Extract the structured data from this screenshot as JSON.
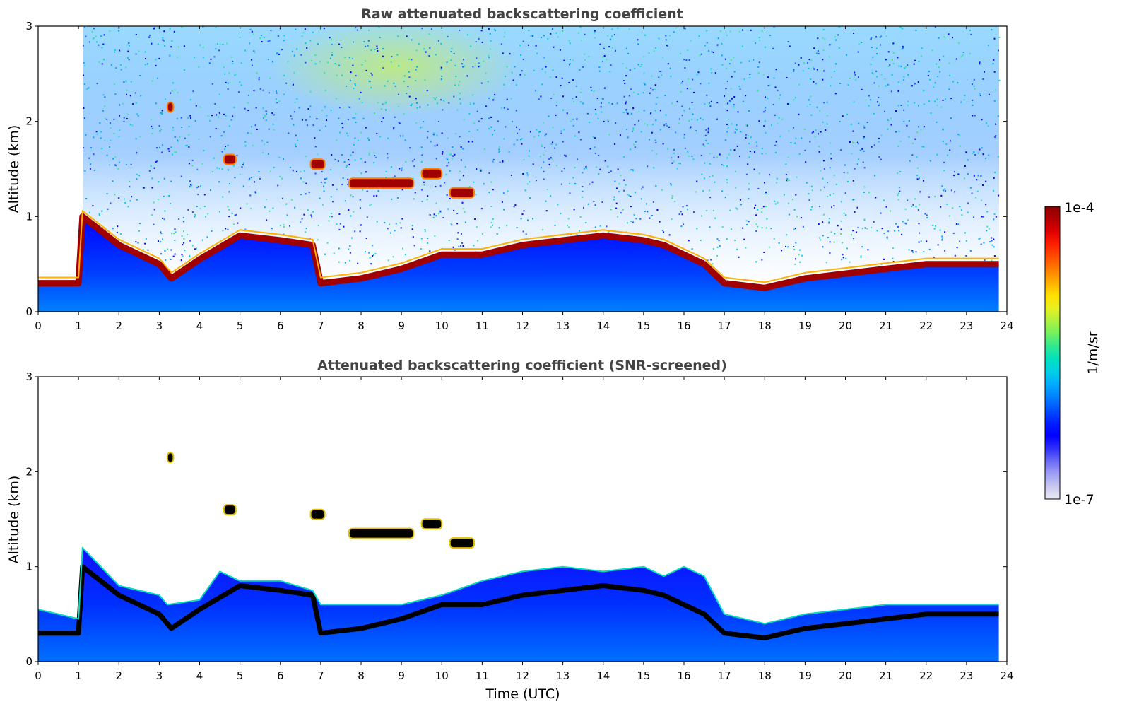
{
  "chart_data": [
    {
      "type": "heatmap",
      "title": "Raw attenuated backscattering coefficient",
      "xlabel": "",
      "ylabel": "Altitude (km)",
      "xlim": [
        0,
        24
      ],
      "ylim": [
        0,
        3
      ],
      "xticks": [
        "0",
        "1",
        "2",
        "3",
        "4",
        "5",
        "6",
        "7",
        "8",
        "9",
        "10",
        "11",
        "12",
        "13",
        "14",
        "15",
        "16",
        "17",
        "18",
        "19",
        "20",
        "21",
        "22",
        "23",
        "24"
      ],
      "yticks": [
        "0",
        "1",
        "2",
        "3"
      ],
      "data_end_time": 23.8,
      "boundary_layer_top_km": [
        [
          0,
          0.3
        ],
        [
          1,
          0.3
        ],
        [
          1.1,
          1.0
        ],
        [
          2,
          0.7
        ],
        [
          3,
          0.5
        ],
        [
          3.3,
          0.35
        ],
        [
          4,
          0.55
        ],
        [
          5,
          0.8
        ],
        [
          6,
          0.75
        ],
        [
          6.8,
          0.7
        ],
        [
          7,
          0.3
        ],
        [
          8,
          0.35
        ],
        [
          9,
          0.45
        ],
        [
          10,
          0.6
        ],
        [
          11,
          0.6
        ],
        [
          12,
          0.7
        ],
        [
          13,
          0.75
        ],
        [
          14,
          0.8
        ],
        [
          15,
          0.75
        ],
        [
          15.5,
          0.7
        ],
        [
          16,
          0.6
        ],
        [
          16.5,
          0.5
        ],
        [
          17,
          0.3
        ],
        [
          18,
          0.25
        ],
        [
          19,
          0.35
        ],
        [
          20,
          0.4
        ],
        [
          21,
          0.45
        ],
        [
          22,
          0.5
        ],
        [
          23,
          0.5
        ],
        [
          23.8,
          0.5
        ]
      ],
      "elevated_layers": [
        {
          "t_start": 3.2,
          "t_end": 3.35,
          "alt_km": 2.15
        },
        {
          "t_start": 4.6,
          "t_end": 4.9,
          "alt_km": 1.6
        },
        {
          "t_start": 6.75,
          "t_end": 7.1,
          "alt_km": 1.55
        },
        {
          "t_start": 7.7,
          "t_end": 9.3,
          "alt_km": 1.35
        },
        {
          "t_start": 9.5,
          "t_end": 10.0,
          "alt_km": 1.45
        },
        {
          "t_start": 10.2,
          "t_end": 10.8,
          "alt_km": 1.25
        }
      ]
    },
    {
      "type": "heatmap",
      "title": "Attenuated backscattering coefficient (SNR-screened)",
      "xlabel": "Time (UTC)",
      "ylabel": "Altitude (km)",
      "xlim": [
        0,
        24
      ],
      "ylim": [
        0,
        3
      ],
      "xticks": [
        "0",
        "1",
        "2",
        "3",
        "4",
        "5",
        "6",
        "7",
        "8",
        "9",
        "10",
        "11",
        "12",
        "13",
        "14",
        "15",
        "16",
        "17",
        "18",
        "19",
        "20",
        "21",
        "22",
        "23",
        "24"
      ],
      "yticks": [
        "0",
        "1",
        "2",
        "3"
      ],
      "data_end_time": 23.8,
      "signal_top_km": [
        [
          0,
          0.55
        ],
        [
          1,
          0.45
        ],
        [
          1.1,
          1.2
        ],
        [
          2,
          0.8
        ],
        [
          3,
          0.7
        ],
        [
          3.2,
          0.6
        ],
        [
          4,
          0.65
        ],
        [
          4.5,
          0.95
        ],
        [
          5,
          0.85
        ],
        [
          6,
          0.85
        ],
        [
          6.8,
          0.75
        ],
        [
          7,
          0.6
        ],
        [
          8,
          0.6
        ],
        [
          9,
          0.6
        ],
        [
          10,
          0.7
        ],
        [
          11,
          0.85
        ],
        [
          12,
          0.95
        ],
        [
          13,
          1.0
        ],
        [
          14,
          0.95
        ],
        [
          15,
          1.0
        ],
        [
          15.5,
          0.9
        ],
        [
          16,
          1.0
        ],
        [
          16.5,
          0.9
        ],
        [
          17,
          0.5
        ],
        [
          18,
          0.4
        ],
        [
          19,
          0.5
        ],
        [
          20,
          0.55
        ],
        [
          21,
          0.6
        ],
        [
          22,
          0.6
        ],
        [
          23,
          0.6
        ],
        [
          23.8,
          0.6
        ]
      ]
    }
  ],
  "colorbar": {
    "max_label": "1e-4",
    "min_label": "1e-7",
    "unit_label": "1/m/sr",
    "colors": [
      "#ebeaf5",
      "#c8c8f0",
      "#9e9ef5",
      "#6a6af5",
      "#2d2dfa",
      "#0000ff",
      "#0020ff",
      "#0050ff",
      "#0080ff",
      "#00aaff",
      "#00cfe8",
      "#00e0c0",
      "#30e890",
      "#70f060",
      "#b0f040",
      "#e8f020",
      "#ffe000",
      "#ffb000",
      "#ff8000",
      "#ff5000",
      "#ff2000",
      "#e00000",
      "#b00000",
      "#8b0000"
    ]
  }
}
